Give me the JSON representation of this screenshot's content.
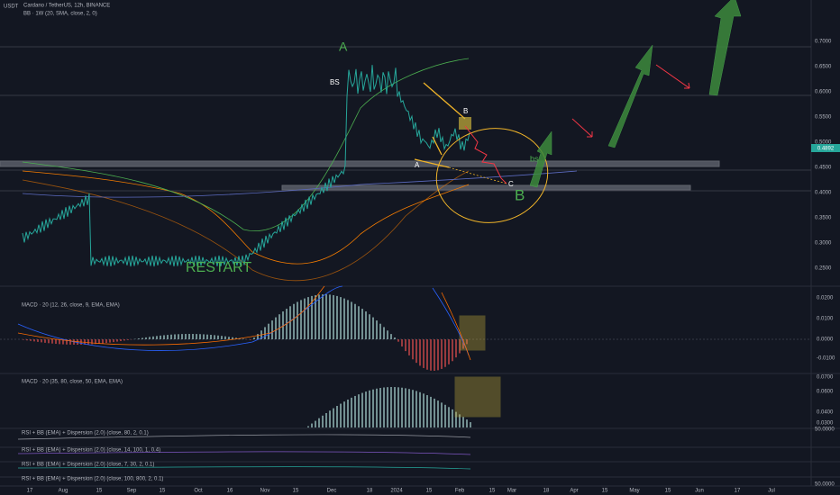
{
  "header": {
    "currency": "USDT",
    "title": "Cardano / TetherUS, 12h, BINANCE",
    "indicator": "BB · 1W (20, SMA, close, 2, 0)"
  },
  "price_axis": [
    "0.7000",
    "0.6500",
    "0.6000",
    "0.5500",
    "0.5000",
    "0.4500",
    "0.4000",
    "0.3500",
    "0.3000",
    "0.2500"
  ],
  "current_price": "0.4892",
  "annotations": {
    "wave_a": "A",
    "bs_upper": "BS",
    "point_b": "B",
    "point_a": "A",
    "point_c": "C",
    "wave_b": "B",
    "bs_lower": "bs",
    "restart": "RESTART"
  },
  "macd_fast": {
    "title": "MACD · 20 (12, 26, close, 9, EMA, EMA)",
    "axis": [
      "0.0200",
      "0.0100",
      "0.0000",
      "-0.0100"
    ]
  },
  "macd_slow": {
    "title": "MACD · 20 (35, 80, close, 50, EMA, EMA)",
    "axis": [
      "0.0700",
      "0.0600",
      "0.0400",
      "0.0300"
    ]
  },
  "rsi_panes": [
    {
      "title": "RSI + BB (EMA) + Dispersion (2.0) (close, 80, 2, 0.1)",
      "axis": "50.0000"
    },
    {
      "title": "RSI + BB (EMA) + Dispersion (2.0) (close, 14, 100, 1, 0.4)"
    },
    {
      "title": "RSI + BB (EMA) + Dispersion (2.0) (close, 7, 30, 2, 0.1)"
    },
    {
      "title": "RSI + BB (EMA) + Dispersion (2.0) (close, 100, 800, 2, 0.1)",
      "axis": "50.0000"
    }
  ],
  "time_axis": [
    "17",
    "Aug",
    "15",
    "Sep",
    "15",
    "Oct",
    "16",
    "Nov",
    "15",
    "Dec",
    "18",
    "2024",
    "15",
    "Feb",
    "15",
    "Mar",
    "18",
    "Apr",
    "15",
    "May",
    "15",
    "Jun",
    "17",
    "Jul"
  ]
}
